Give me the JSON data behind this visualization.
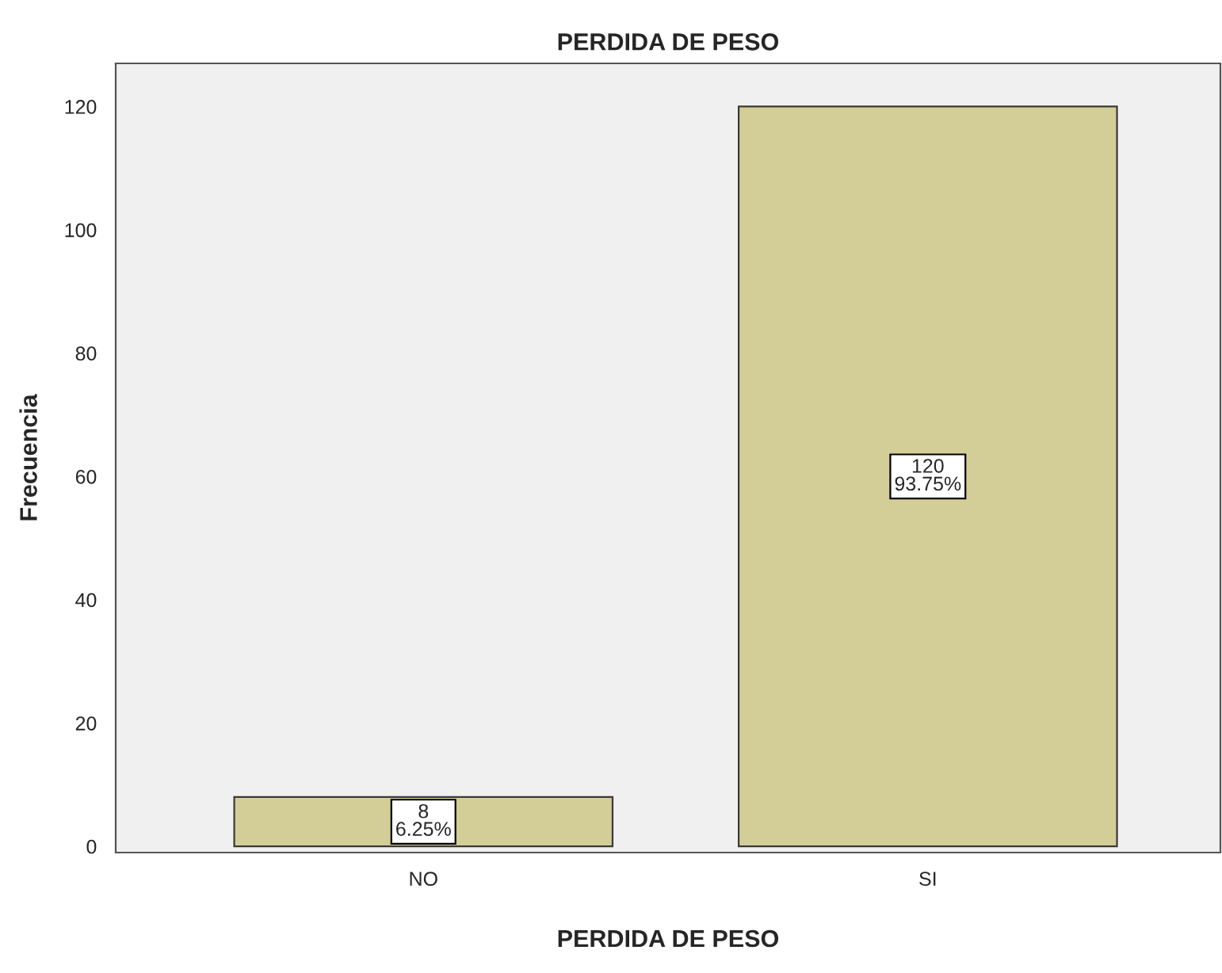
{
  "chart_data": {
    "type": "bar",
    "title": "PERDIDA DE PESO",
    "xlabel": "PERDIDA DE PESO",
    "ylabel": "Frecuencia",
    "categories": [
      "NO",
      "SI"
    ],
    "values": [
      8,
      120
    ],
    "color": "#d3ce97",
    "value_labels": [
      "8\n6.25%",
      "120\n93.75%"
    ],
    "ylim": [
      -1,
      127
    ],
    "yticks": [
      0,
      20,
      40,
      60,
      80,
      100,
      120
    ],
    "grid": false,
    "legend": false
  }
}
